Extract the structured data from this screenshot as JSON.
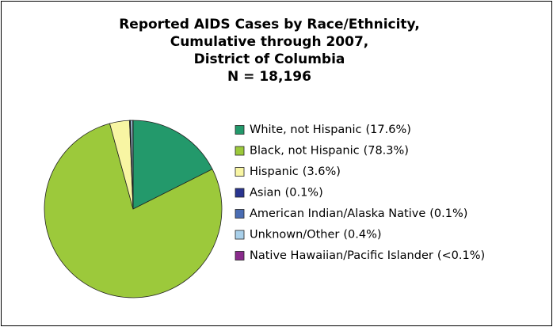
{
  "chart_data": {
    "type": "pie",
    "title": [
      "Reported AIDS Cases by Race/Ethnicity,",
      "Cumulative through 2007,",
      "District of Columbia",
      "N = 18,196"
    ],
    "categories": [
      "White, not Hispanic",
      "Black, not Hispanic",
      "Hispanic",
      "Asian",
      "American Indian/Alaska Native",
      "Unknown/Other",
      "Native Hawaiian/Pacific Islander"
    ],
    "values": [
      17.6,
      78.3,
      3.6,
      0.1,
      0.1,
      0.4,
      0.05
    ],
    "value_labels": [
      "(17.6%)",
      "(78.3%)",
      "(3.6%)",
      "(0.1%)",
      "(0.1%)",
      "(0.4%)",
      "(<0.1%)"
    ],
    "colors": [
      "#23996b",
      "#9cc93b",
      "#f8f5a3",
      "#2a3590",
      "#4a6db3",
      "#a9d0ea",
      "#8a2b8c"
    ],
    "legend": "right"
  }
}
